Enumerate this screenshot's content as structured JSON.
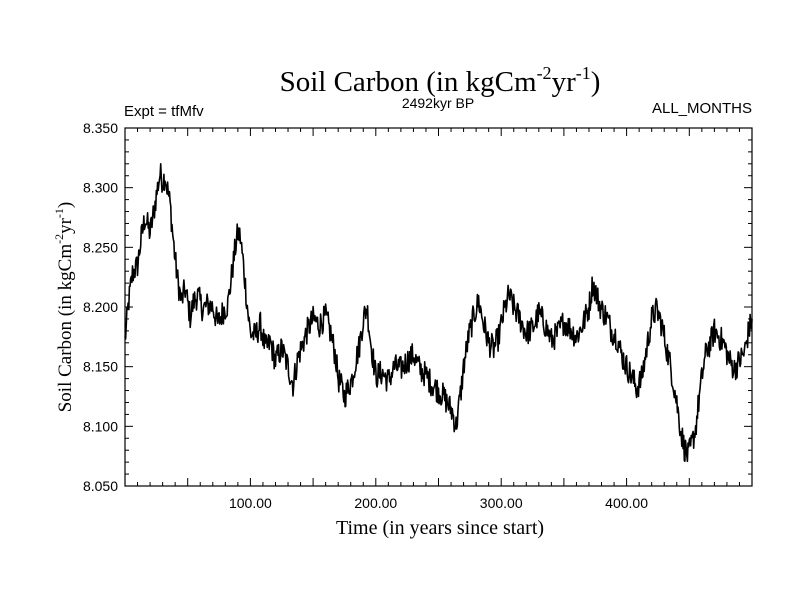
{
  "chart_data": {
    "type": "line",
    "title": "Soil Carbon (in kgCm",
    "title_sup1": "-2",
    "title_mid": "yr",
    "title_sup2": "-1",
    "title_end": ")",
    "subtitle_left": "Expt = tfMfv",
    "subtitle_center": "2492kyr BP",
    "subtitle_right": "ALL_MONTHS",
    "xlabel": "Time (in years since start)",
    "ylabel": "Soil Carbon (in kgCm",
    "ylabel_sup1": "-2",
    "ylabel_mid": "yr",
    "ylabel_sup2": "-1",
    "ylabel_end": ")",
    "xlim": [
      0,
      500
    ],
    "ylim": [
      8.05,
      8.35
    ],
    "xticks": [
      100,
      200,
      300,
      400
    ],
    "xtick_labels": [
      "100.00",
      "200.00",
      "300.00",
      "400.00"
    ],
    "yticks": [
      8.05,
      8.1,
      8.15,
      8.2,
      8.25,
      8.3,
      8.35
    ],
    "ytick_labels": [
      "8.050",
      "8.100",
      "8.150",
      "8.200",
      "8.250",
      "8.300",
      "8.350"
    ],
    "series": [
      {
        "name": "Soil Carbon",
        "color": "#000000",
        "x": [
          0,
          3,
          6,
          10,
          13,
          16,
          20,
          23,
          26,
          28,
          30,
          32,
          34,
          36,
          38,
          40,
          42,
          45,
          48,
          52,
          55,
          58,
          62,
          66,
          70,
          74,
          78,
          82,
          85,
          88,
          90,
          92,
          94,
          96,
          98,
          100,
          104,
          108,
          112,
          116,
          120,
          125,
          130,
          134,
          138,
          142,
          146,
          150,
          155,
          160,
          164,
          168,
          170,
          172,
          175,
          178,
          181,
          184,
          187,
          190,
          193,
          196,
          200,
          205,
          210,
          215,
          220,
          225,
          230,
          235,
          240,
          245,
          250,
          254,
          258,
          261,
          264,
          266,
          268,
          270,
          274,
          278,
          282,
          286,
          290,
          294,
          298,
          302,
          306,
          310,
          315,
          320,
          325,
          330,
          335,
          340,
          345,
          350,
          355,
          360,
          365,
          370,
          373,
          376,
          380,
          384,
          388,
          392,
          396,
          400,
          404,
          408,
          412,
          416,
          420,
          424,
          428,
          432,
          436,
          440,
          443,
          446,
          449,
          452,
          455,
          458,
          461,
          464,
          467,
          470,
          474,
          478,
          482,
          486,
          490,
          494,
          497,
          500
        ],
        "y": [
          8.172,
          8.205,
          8.228,
          8.235,
          8.258,
          8.275,
          8.262,
          8.28,
          8.3,
          8.312,
          8.305,
          8.31,
          8.298,
          8.286,
          8.262,
          8.24,
          8.222,
          8.205,
          8.215,
          8.192,
          8.205,
          8.21,
          8.198,
          8.202,
          8.2,
          8.186,
          8.196,
          8.202,
          8.226,
          8.25,
          8.262,
          8.258,
          8.24,
          8.218,
          8.196,
          8.178,
          8.176,
          8.185,
          8.165,
          8.17,
          8.155,
          8.165,
          8.15,
          8.135,
          8.158,
          8.17,
          8.182,
          8.19,
          8.185,
          8.192,
          8.178,
          8.158,
          8.14,
          8.135,
          8.125,
          8.132,
          8.14,
          8.155,
          8.168,
          8.19,
          8.2,
          8.17,
          8.142,
          8.145,
          8.138,
          8.15,
          8.148,
          8.155,
          8.16,
          8.148,
          8.143,
          8.135,
          8.13,
          8.125,
          8.118,
          8.112,
          8.1,
          8.115,
          8.13,
          8.15,
          8.175,
          8.192,
          8.205,
          8.186,
          8.17,
          8.165,
          8.175,
          8.195,
          8.21,
          8.2,
          8.19,
          8.178,
          8.182,
          8.195,
          8.185,
          8.172,
          8.178,
          8.188,
          8.182,
          8.175,
          8.185,
          8.2,
          8.22,
          8.21,
          8.198,
          8.192,
          8.18,
          8.175,
          8.16,
          8.15,
          8.142,
          8.132,
          8.14,
          8.165,
          8.19,
          8.198,
          8.185,
          8.165,
          8.145,
          8.12,
          8.098,
          8.082,
          8.075,
          8.085,
          8.098,
          8.125,
          8.148,
          8.165,
          8.17,
          8.18,
          8.175,
          8.168,
          8.155,
          8.148,
          8.155,
          8.162,
          8.178,
          8.19
        ]
      }
    ]
  }
}
